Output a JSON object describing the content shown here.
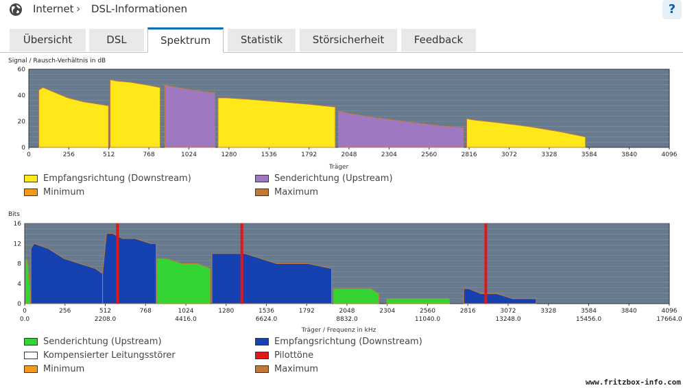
{
  "header": {
    "breadcrumb_1": "Internet",
    "breadcrumb_separator": "›",
    "breadcrumb_2": "DSL-Informationen",
    "help_label": "?"
  },
  "tabs": [
    {
      "label": "Übersicht",
      "active": false
    },
    {
      "label": "DSL",
      "active": false
    },
    {
      "label": "Spektrum",
      "active": true
    },
    {
      "label": "Statistik",
      "active": false
    },
    {
      "label": "Störsicherheit",
      "active": false
    },
    {
      "label": "Feedback",
      "active": false
    }
  ],
  "colors": {
    "plot_bg": "#687b8e",
    "downstream_snr": "#ffe81a",
    "upstream_snr": "#9e79c2",
    "upstream_bits": "#33d433",
    "downstream_bits": "#1542b0",
    "pilot": "#e01818",
    "minimum": "#f49a1a",
    "maximum": "#c07a36"
  },
  "chart_data": [
    {
      "type": "area",
      "ylabel": "Signal / Rausch-Verhältnis in dB",
      "xlabel": "Träger",
      "xlim": [
        0,
        4096
      ],
      "ylim": [
        0,
        60
      ],
      "x_ticks": [
        0,
        256,
        512,
        768,
        1024,
        1280,
        1536,
        1792,
        2048,
        2304,
        2560,
        2816,
        3072,
        3328,
        3584,
        3840,
        4096
      ],
      "y_ticks": [
        0,
        20,
        40,
        60
      ],
      "grid": true,
      "legend_position": "bottom",
      "series": [
        {
          "name": "Empfangsrichtung (Downstream)",
          "color": "#ffe81a",
          "segments": [
            {
              "x": [
                64,
                90,
                150,
                250,
                350,
                510
              ],
              "y": [
                44,
                46,
                43,
                38,
                35,
                32
              ]
            },
            {
              "x": [
                520,
                560,
                650,
                750,
                840
              ],
              "y": [
                52,
                51,
                50,
                48,
                46
              ]
            },
            {
              "x": [
                1210,
                1260,
                1400,
                1600,
                1800,
                1960
              ],
              "y": [
                38,
                38,
                37,
                35,
                33,
                31
              ]
            },
            {
              "x": [
                2800,
                2850,
                3000,
                3200,
                3400,
                3560
              ],
              "y": [
                22,
                21,
                19,
                16,
                12,
                8
              ]
            }
          ]
        },
        {
          "name": "Senderichtung (Upstream)",
          "color": "#9e79c2",
          "segments": [
            {
              "x": [
                870,
                900,
                1000,
                1100,
                1190
              ],
              "y": [
                48,
                47,
                45,
                43,
                42
              ]
            },
            {
              "x": [
                1980,
                2050,
                2200,
                2400,
                2600,
                2780
              ],
              "y": [
                28,
                26,
                23,
                20,
                17,
                15
              ]
            }
          ]
        },
        {
          "name": "Minimum",
          "color": "#f49a1a"
        },
        {
          "name": "Maximum",
          "color": "#c07a36"
        }
      ]
    },
    {
      "type": "area",
      "ylabel": "Bits",
      "xlabel": "Träger / Frequenz in kHz",
      "xlim": [
        0,
        4096
      ],
      "ylim": [
        0,
        16
      ],
      "x_ticks": [
        0,
        256,
        512,
        768,
        1024,
        1280,
        1536,
        1792,
        2048,
        2304,
        2560,
        2816,
        3072,
        3328,
        3584,
        3840,
        4096
      ],
      "freq_ticks": [
        {
          "x": 0,
          "label": "0.0"
        },
        {
          "x": 512,
          "label": "2208.0"
        },
        {
          "x": 1024,
          "label": "4416.0"
        },
        {
          "x": 1536,
          "label": "6624.0"
        },
        {
          "x": 2048,
          "label": "8832.0"
        },
        {
          "x": 2560,
          "label": "11040.0"
        },
        {
          "x": 3072,
          "label": "13248.0"
        },
        {
          "x": 3584,
          "label": "15456.0"
        },
        {
          "x": 4096,
          "label": "17664.0"
        }
      ],
      "y_ticks": [
        0,
        4,
        8,
        12,
        16
      ],
      "grid": true,
      "legend_position": "bottom",
      "pilot_tones": [
        590,
        1380,
        2930
      ],
      "series": [
        {
          "name": "Senderichtung (Upstream)",
          "color": "#33d433",
          "segments": [
            {
              "x": [
                6,
                10,
                20,
                30,
                36
              ],
              "y": [
                9,
                9,
                8,
                5,
                2
              ]
            },
            {
              "x": [
                840,
                860,
                900,
                1000,
                1100,
                1180
              ],
              "y": [
                9,
                9,
                9,
                8,
                8,
                7
              ]
            },
            {
              "x": [
                1960,
                2000,
                2100,
                2200,
                2250
              ],
              "y": [
                3,
                3,
                3,
                3,
                2
              ]
            },
            {
              "x": [
                2300,
                2400,
                2500,
                2600,
                2700
              ],
              "y": [
                1,
                1,
                1,
                1,
                1
              ]
            }
          ]
        },
        {
          "name": "Empfangsrichtung (Downstream)",
          "color": "#1542b0",
          "segments": [
            {
              "x": [
                40,
                60,
                150,
                250,
                350,
                450,
                495
              ],
              "y": [
                11,
                12,
                11,
                9,
                8,
                7,
                6
              ]
            },
            {
              "x": [
                495,
                520,
                560,
                620,
                700,
                800,
                835
              ],
              "y": [
                6,
                14,
                14,
                13,
                13,
                12,
                12
              ]
            },
            {
              "x": [
                1190,
                1200,
                1300,
                1400,
                1500,
                1600,
                1700,
                1800,
                1950
              ],
              "y": [
                10,
                10,
                10,
                10,
                9,
                8,
                8,
                8,
                7
              ]
            },
            {
              "x": [
                2790,
                2820,
                2900,
                3000,
                3100,
                3250
              ],
              "y": [
                3,
                3,
                2,
                2,
                1,
                1
              ]
            }
          ]
        },
        {
          "name": "Kompensierter Leitungsstörer",
          "color": "#ffffff"
        },
        {
          "name": "Pilottöne",
          "color": "#e01818"
        },
        {
          "name": "Minimum",
          "color": "#f49a1a"
        },
        {
          "name": "Maximum",
          "color": "#c07a36"
        }
      ]
    }
  ],
  "watermark": "www.fritzbox-info.com"
}
